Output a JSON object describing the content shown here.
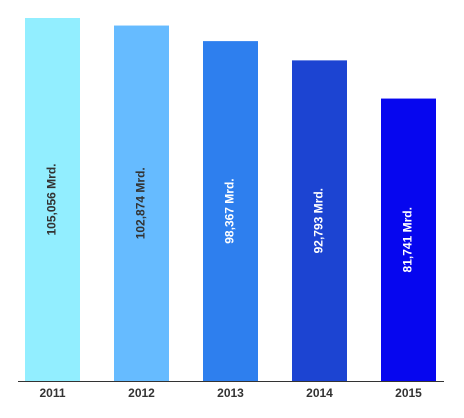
{
  "chart_data": {
    "type": "bar",
    "categories": [
      "2011",
      "2012",
      "2013",
      "2014",
      "2015"
    ],
    "values": [
      105056,
      102874,
      98367,
      92793,
      81741
    ],
    "value_labels": [
      "105,056 Mrd.",
      "102,874 Mrd.",
      "98,367 Mrd.",
      "92,793 Mrd.",
      "81,741 Mrd."
    ],
    "colors": [
      "#92eeff",
      "#66bbff",
      "#2e7fee",
      "#1c44d2",
      "#0606ef"
    ],
    "label_colors": [
      "#333333",
      "#333333",
      "#ffffff",
      "#ffffff",
      "#ffffff"
    ]
  }
}
